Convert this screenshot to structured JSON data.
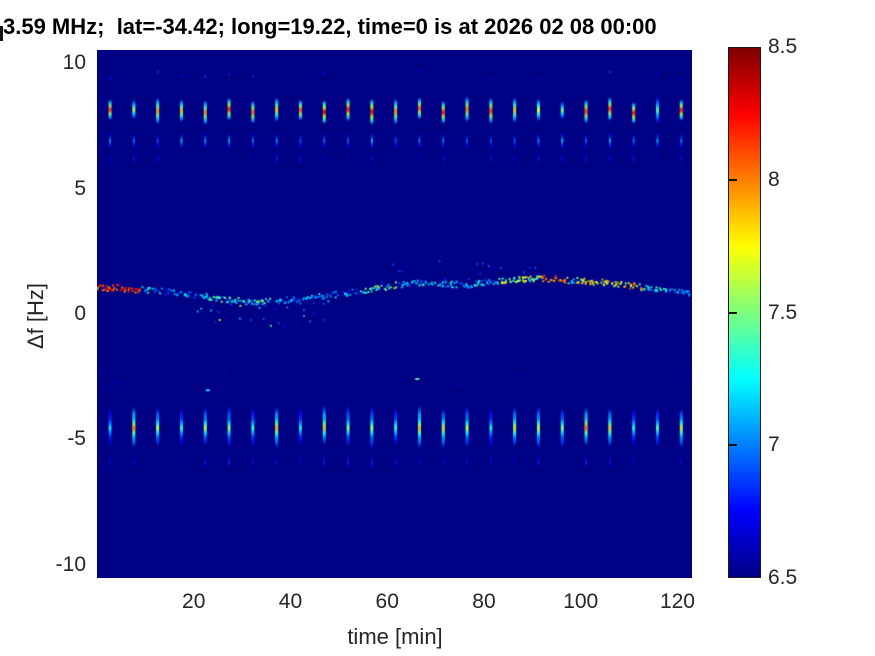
{
  "chart_data": {
    "type": "heatmap",
    "subtype": "doppler-spectrogram",
    "title": "3.59 MHz;  lat=-34.42; long=19.22, time=0 is at 2026 02 08 00:00",
    "title_truncated_at_left": true,
    "xlabel": "time [min]",
    "ylabel": "Δf [Hz]",
    "xlim": [
      0,
      123
    ],
    "ylim": [
      -10.52,
      10.52
    ],
    "xticks": [
      20,
      40,
      60,
      80,
      100,
      120
    ],
    "yticks": [
      10,
      5,
      0,
      -5,
      -10
    ],
    "grid": false,
    "background_value_color": "#000084",
    "colorbar": {
      "min": 6.5,
      "max": 8.5,
      "ticks": [
        6.5,
        7,
        7.5,
        8,
        8.5
      ],
      "inner_marks": [
        7,
        7.5,
        8
      ],
      "position": "right",
      "colormap": "jet"
    },
    "pulses": {
      "first_min": 2.7,
      "period_min": 4.92,
      "count": 25,
      "upper_band": {
        "df_extent": [
          7.6,
          8.6
        ],
        "value_core": [
          7.8,
          8.4
        ],
        "echo1_df": [
          6.55,
          7.25
        ],
        "echo2_df": [
          5.9,
          6.45
        ],
        "top_speck_df": 9.6
      },
      "lower_band": {
        "df_extent": [
          -5.45,
          -3.55
        ],
        "value_core": [
          7.0,
          7.9
        ],
        "echo_df": [
          -6.2,
          -5.6
        ]
      }
    },
    "carrier_trace": {
      "points": [
        [
          0,
          1.05
        ],
        [
          4,
          1.08
        ],
        [
          8,
          1.0
        ],
        [
          12,
          0.95
        ],
        [
          16,
          0.9
        ],
        [
          20,
          0.8
        ],
        [
          24,
          0.68
        ],
        [
          28,
          0.58
        ],
        [
          32,
          0.52
        ],
        [
          36,
          0.55
        ],
        [
          40,
          0.6
        ],
        [
          44,
          0.68
        ],
        [
          48,
          0.78
        ],
        [
          52,
          0.88
        ],
        [
          56,
          0.98
        ],
        [
          60,
          1.1
        ],
        [
          64,
          1.28
        ],
        [
          68,
          1.3
        ],
        [
          72,
          1.22
        ],
        [
          76,
          1.2
        ],
        [
          80,
          1.28
        ],
        [
          84,
          1.35
        ],
        [
          88,
          1.42
        ],
        [
          92,
          1.45
        ],
        [
          96,
          1.4
        ],
        [
          100,
          1.35
        ],
        [
          104,
          1.3
        ],
        [
          108,
          1.22
        ],
        [
          112,
          1.12
        ],
        [
          116,
          0.98
        ],
        [
          120,
          0.9
        ],
        [
          123,
          0.85
        ]
      ],
      "segments": [
        {
          "t0": 0,
          "t1": 9,
          "v0": 7.9,
          "v1": 8.35,
          "d": 0.95
        },
        {
          "t0": 9,
          "t1": 14,
          "v0": 6.9,
          "v1": 7.35,
          "d": 0.55
        },
        {
          "t0": 14,
          "t1": 22,
          "v0": 6.8,
          "v1": 7.25,
          "d": 0.6
        },
        {
          "t0": 22,
          "t1": 36,
          "v0": 6.9,
          "v1": 7.6,
          "d": 0.85
        },
        {
          "t0": 36,
          "t1": 54,
          "v0": 6.8,
          "v1": 7.25,
          "d": 0.7
        },
        {
          "t0": 54,
          "t1": 62,
          "v0": 7.0,
          "v1": 7.65,
          "d": 0.8
        },
        {
          "t0": 62,
          "t1": 83,
          "v0": 6.85,
          "v1": 7.35,
          "d": 0.75
        },
        {
          "t0": 83,
          "t1": 92,
          "v0": 7.2,
          "v1": 7.8,
          "d": 0.9
        },
        {
          "t0": 92,
          "t1": 97,
          "v0": 7.8,
          "v1": 8.2,
          "d": 0.9
        },
        {
          "t0": 97,
          "t1": 99,
          "v0": 7.0,
          "v1": 7.4,
          "d": 0.7
        },
        {
          "t0": 99,
          "t1": 106,
          "v0": 7.4,
          "v1": 8.0,
          "d": 0.85
        },
        {
          "t0": 106,
          "t1": 113,
          "v0": 7.3,
          "v1": 8.1,
          "d": 0.85
        },
        {
          "t0": 113,
          "t1": 118,
          "v0": 7.0,
          "v1": 7.5,
          "d": 0.75
        },
        {
          "t0": 118,
          "t1": 123,
          "v0": 6.8,
          "v1": 7.2,
          "d": 0.6
        }
      ],
      "scatter_below": {
        "t_range": [
          20,
          48
        ],
        "df_depth": 0.9
      },
      "specks_above": {
        "t_range": [
          58,
          92
        ],
        "df_height": 0.7
      }
    },
    "faint_band": {
      "df_range": [
        -3.0,
        -2.2
      ],
      "value_range": [
        6.6,
        6.8
      ],
      "bright_dots": [
        {
          "t": 22.7,
          "df": -3.0,
          "v": 7.2
        },
        {
          "t": 66.0,
          "df": -2.55,
          "v": 7.4
        }
      ]
    }
  }
}
